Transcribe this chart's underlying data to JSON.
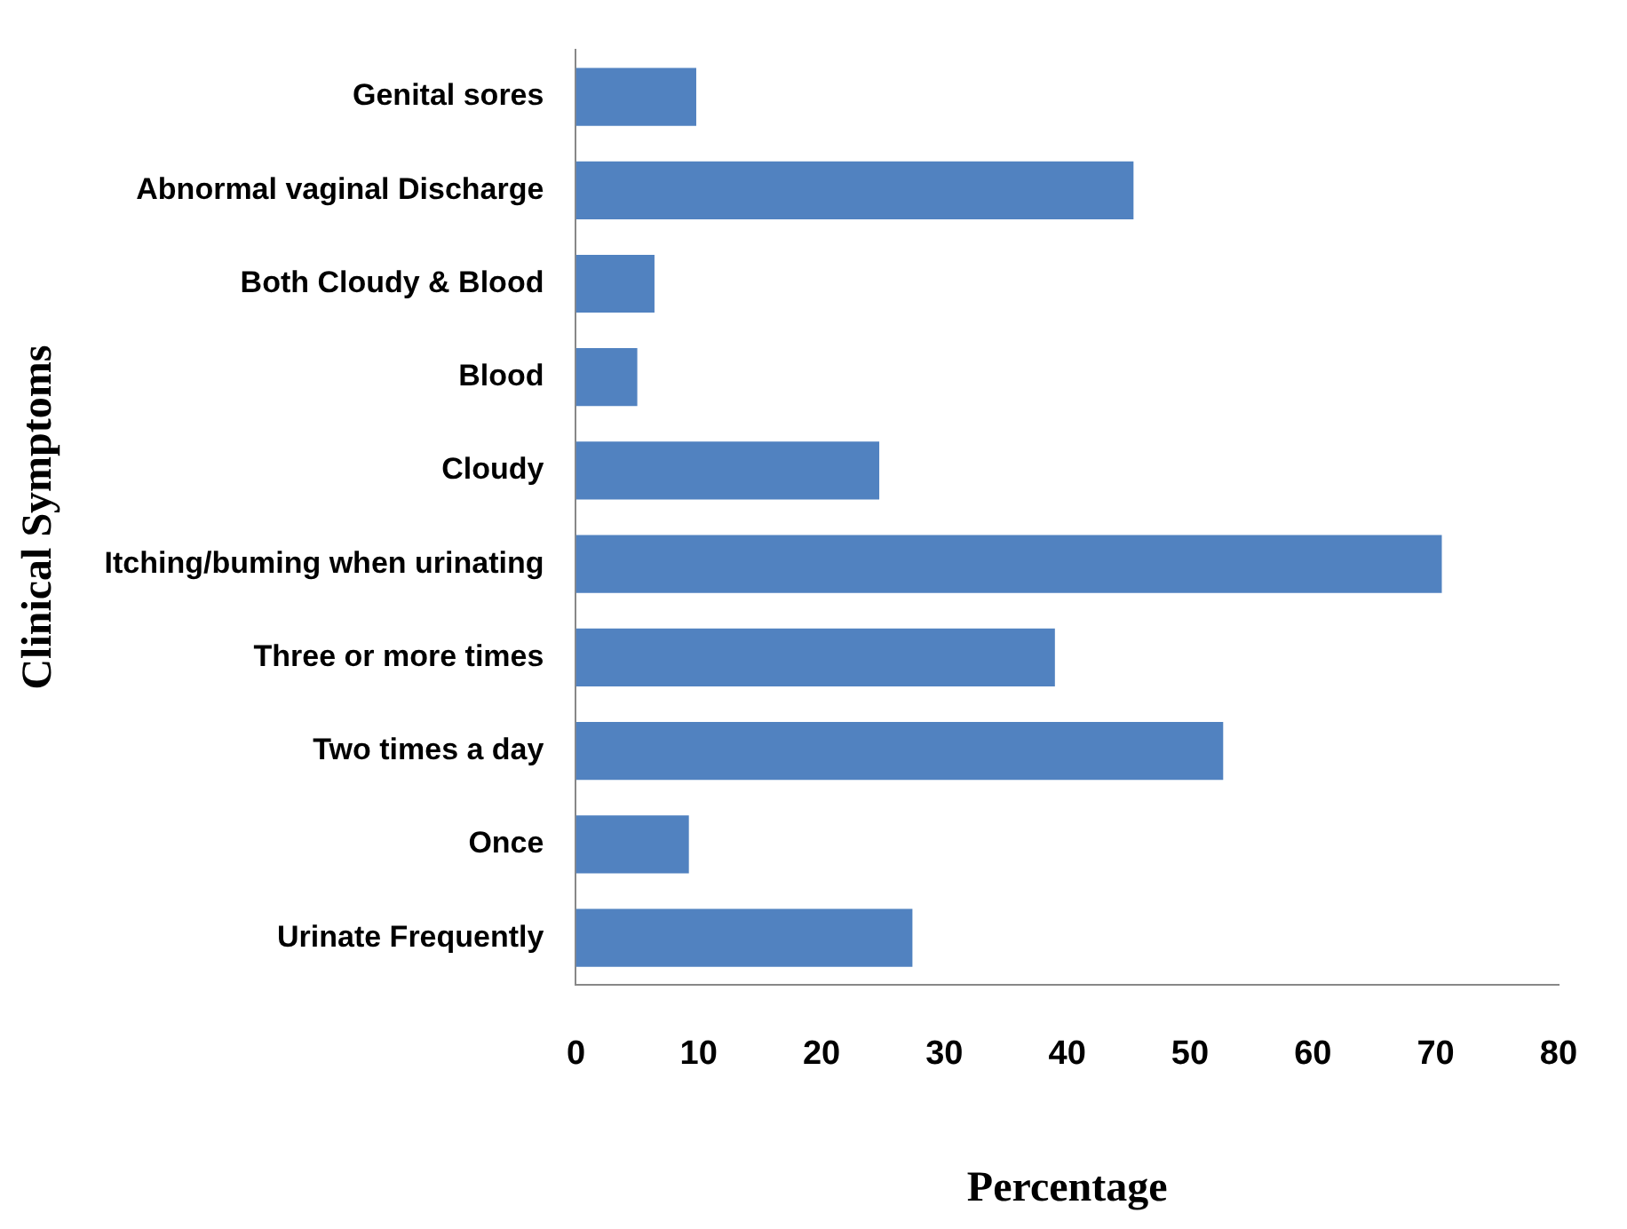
{
  "chart_data": {
    "type": "bar",
    "orientation": "horizontal",
    "xlabel": "Percentage",
    "ylabel": "Clinical Symptoms",
    "categories": [
      "Genital sores",
      "Abnormal vaginal Discharge",
      "Both Cloudy & Blood",
      "Blood",
      "Cloudy",
      "Itching/buming when urinating",
      "Three or more times",
      "Two times a day",
      "Once",
      "Urinate Frequently"
    ],
    "values": [
      9.8,
      45.4,
      6.4,
      5,
      24.7,
      70.5,
      39,
      52.7,
      9.2,
      27.4
    ],
    "color": "#5182c0",
    "xlim": [
      0,
      80
    ],
    "xticks": [
      0,
      10,
      20,
      30,
      40,
      50,
      60,
      70,
      80
    ],
    "grid": false,
    "legend": false
  }
}
